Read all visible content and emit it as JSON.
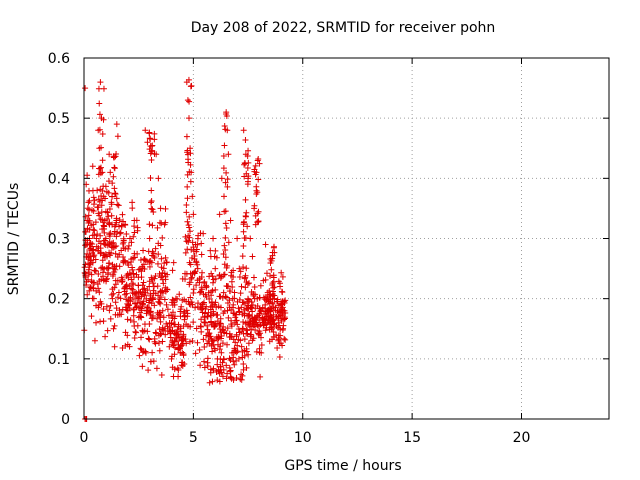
{
  "chart_data": {
    "type": "scatter",
    "title": "Day 208 of 2022, SRMTID for receiver pohn",
    "xlabel": "GPS time / hours",
    "ylabel": "SRMTID / TECUs",
    "xlim": [
      0,
      24
    ],
    "ylim": [
      0,
      0.6
    ],
    "x_ticks": [
      0,
      5,
      10,
      15,
      20
    ],
    "x_tick_labels": [
      "0",
      "5",
      "10",
      "15",
      "20"
    ],
    "y_ticks": [
      0,
      0.1,
      0.2,
      0.3,
      0.4,
      0.5,
      0.6
    ],
    "y_tick_labels": [
      "0",
      "0.1",
      "0.2",
      "0.3",
      "0.4",
      "0.5",
      "0.6"
    ],
    "grid": true,
    "marker": "+",
    "series": [
      {
        "name": "SRMTID",
        "color": "#e00000",
        "points": [
          [
            0.05,
            0.55
          ],
          [
            0.05,
            0.0
          ],
          [
            0.1,
            0.0
          ],
          [
            0.12,
            0.0
          ],
          [
            0.1,
            0.39
          ],
          [
            0.15,
            0.33
          ],
          [
            0.2,
            0.36
          ],
          [
            0.25,
            0.3
          ],
          [
            0.3,
            0.27
          ],
          [
            0.35,
            0.24
          ],
          [
            0.4,
            0.42
          ],
          [
            0.45,
            0.2
          ],
          [
            0.5,
            0.13
          ],
          [
            0.55,
            0.16
          ],
          [
            0.6,
            0.38
          ],
          [
            0.65,
            0.48
          ],
          [
            0.7,
            0.45
          ],
          [
            0.75,
            0.56
          ],
          [
            0.8,
            0.5
          ],
          [
            0.85,
            0.43
          ],
          [
            0.9,
            0.37
          ],
          [
            0.95,
            0.33
          ],
          [
            1.0,
            0.3
          ],
          [
            1.05,
            0.27
          ],
          [
            1.1,
            0.25
          ],
          [
            1.15,
            0.44
          ],
          [
            1.2,
            0.41
          ],
          [
            1.25,
            0.36
          ],
          [
            1.3,
            0.2
          ],
          [
            1.35,
            0.15
          ],
          [
            1.4,
            0.12
          ],
          [
            1.45,
            0.23
          ],
          [
            1.5,
            0.49
          ],
          [
            1.55,
            0.47
          ],
          [
            1.6,
            0.32
          ],
          [
            1.7,
            0.28
          ],
          [
            1.8,
            0.26
          ],
          [
            1.9,
            0.22
          ],
          [
            2.0,
            0.18
          ],
          [
            2.1,
            0.3
          ],
          [
            2.2,
            0.36
          ],
          [
            2.3,
            0.33
          ],
          [
            2.4,
            0.24
          ],
          [
            2.5,
            0.2
          ],
          [
            2.6,
            0.17
          ],
          [
            2.7,
            0.28
          ],
          [
            2.8,
            0.48
          ],
          [
            2.9,
            0.46
          ],
          [
            3.0,
            0.3
          ],
          [
            3.1,
            0.26
          ],
          [
            3.2,
            0.22
          ],
          [
            3.3,
            0.44
          ],
          [
            3.4,
            0.4
          ],
          [
            3.5,
            0.35
          ],
          [
            3.6,
            0.18
          ],
          [
            3.7,
            0.15
          ],
          [
            3.8,
            0.24
          ],
          [
            3.9,
            0.12
          ],
          [
            4.0,
            0.1
          ],
          [
            4.1,
            0.26
          ],
          [
            4.2,
            0.2
          ],
          [
            4.3,
            0.14
          ],
          [
            4.4,
            0.11
          ],
          [
            4.5,
            0.13
          ],
          [
            4.6,
            0.17
          ],
          [
            4.7,
            0.56
          ],
          [
            4.75,
            0.53
          ],
          [
            4.8,
            0.5
          ],
          [
            4.85,
            0.45
          ],
          [
            4.9,
            0.41
          ],
          [
            4.95,
            0.37
          ],
          [
            5.0,
            0.34
          ],
          [
            5.1,
            0.29
          ],
          [
            5.2,
            0.25
          ],
          [
            5.3,
            0.21
          ],
          [
            5.4,
            0.19
          ],
          [
            5.5,
            0.16
          ],
          [
            5.6,
            0.22
          ],
          [
            5.7,
            0.14
          ],
          [
            5.8,
            0.27
          ],
          [
            5.9,
            0.3
          ],
          [
            6.0,
            0.25
          ],
          [
            6.1,
            0.1
          ],
          [
            6.15,
            0.08
          ],
          [
            6.2,
            0.34
          ],
          [
            6.3,
            0.4
          ],
          [
            6.4,
            0.37
          ],
          [
            6.5,
            0.51
          ],
          [
            6.55,
            0.48
          ],
          [
            6.6,
            0.44
          ],
          [
            6.7,
            0.33
          ],
          [
            6.8,
            0.2
          ],
          [
            6.9,
            0.16
          ],
          [
            7.0,
            0.3
          ],
          [
            7.1,
            0.25
          ],
          [
            7.2,
            0.22
          ],
          [
            7.3,
            0.48
          ],
          [
            7.4,
            0.44
          ],
          [
            7.5,
            0.4
          ],
          [
            7.6,
            0.3
          ],
          [
            7.7,
            0.27
          ],
          [
            7.8,
            0.2
          ],
          [
            7.9,
            0.17
          ],
          [
            8.0,
            0.14
          ],
          [
            8.05,
            0.07
          ],
          [
            8.1,
            0.11
          ],
          [
            8.2,
            0.23
          ],
          [
            8.3,
            0.29
          ],
          [
            8.4,
            0.21
          ],
          [
            8.5,
            0.18
          ],
          [
            8.6,
            0.15
          ],
          [
            8.7,
            0.2
          ],
          [
            8.8,
            0.17
          ],
          [
            8.9,
            0.16
          ],
          [
            9.0,
            0.19
          ],
          [
            9.1,
            0.15
          ]
        ],
        "generated_cloud": {
          "note": "dense point cloud, 0 to 9.2 hours",
          "count": 1200,
          "x_range": [
            0.0,
            9.2
          ]
        }
      }
    ]
  }
}
